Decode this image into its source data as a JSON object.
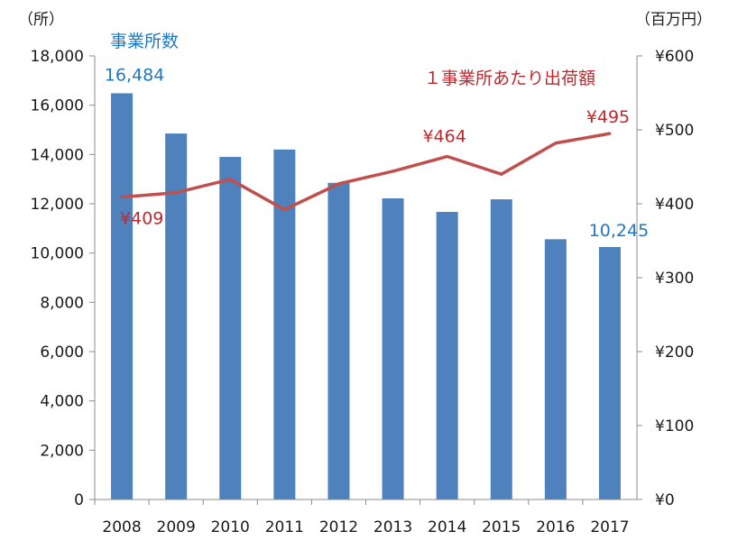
{
  "chart_data": {
    "type": "bar",
    "categories": [
      "2008",
      "2009",
      "2010",
      "2011",
      "2012",
      "2013",
      "2014",
      "2015",
      "2016",
      "2017"
    ],
    "series": [
      {
        "name": "事業所数",
        "type": "bar",
        "axis": "left",
        "values": [
          16484,
          14850,
          13900,
          14200,
          12850,
          12220,
          11670,
          12180,
          10560,
          10245
        ]
      },
      {
        "name": "１事業所あたり出荷額",
        "type": "line",
        "axis": "right",
        "values": [
          409,
          415,
          433,
          392,
          427,
          444,
          464,
          440,
          482,
          495
        ]
      }
    ],
    "y_left": {
      "unit": "（所）",
      "ylim": [
        0,
        18000
      ],
      "ticks": [
        "0",
        "2,000",
        "4,000",
        "6,000",
        "8,000",
        "10,000",
        "12,000",
        "14,000",
        "16,000",
        "18,000"
      ]
    },
    "y_right": {
      "unit": "（百万円）",
      "ylim": [
        0,
        600
      ],
      "ticks": [
        "¥0",
        "¥100",
        "¥200",
        "¥300",
        "¥400",
        "¥500",
        "¥600"
      ]
    },
    "data_labels": {
      "bar_first": "16,484",
      "bar_last": "10,245",
      "line_first": "¥409",
      "line_2014": "¥464",
      "line_last": "¥495"
    },
    "colors": {
      "bar": "#4f81bd",
      "line": "#c0504d",
      "blue_text": "#1f78c1",
      "red_text": "#c0282d"
    }
  }
}
